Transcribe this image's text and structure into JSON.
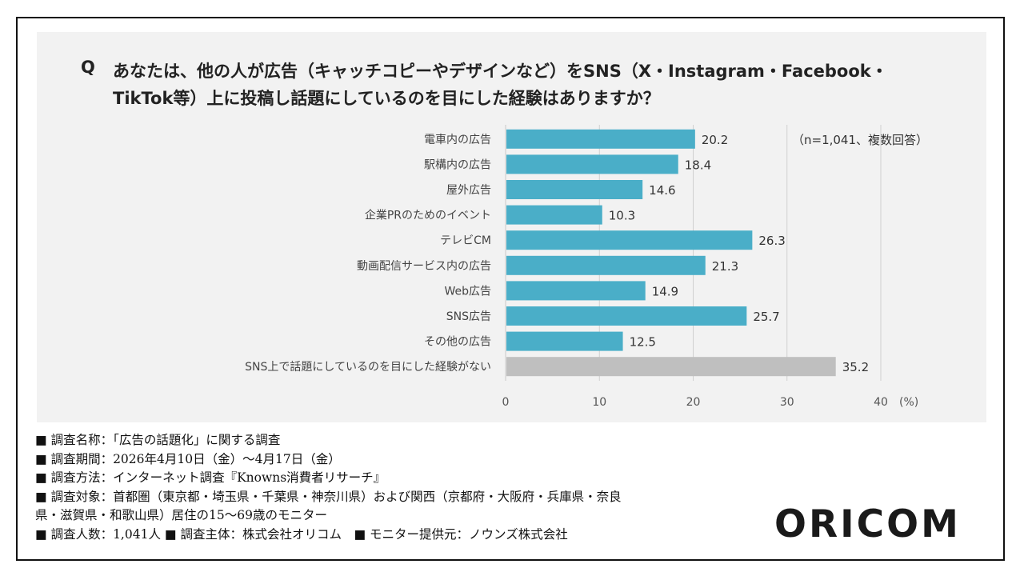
{
  "question": {
    "mark": "Q",
    "line1": "あなたは、他の人が広告（キャッチコピーやデザインなど）をSNS（X・Instagram・Facebook・",
    "line2": "TikTok等）上に投稿し話題にしているのを目にした経験はありますか？"
  },
  "note": "（n=1,041、複数回答）",
  "chart_data": {
    "type": "bar",
    "orientation": "horizontal",
    "categories": [
      "電車内の広告",
      "駅構内の広告",
      "屋外広告",
      "企業PRのためのイベント",
      "テレビCM",
      "動画配信サービス内の広告",
      "Web広告",
      "SNS広告",
      "その他の広告",
      "SNS上で話題にしているのを目にした経験がない"
    ],
    "values": [
      20.2,
      18.4,
      14.6,
      10.3,
      26.3,
      21.3,
      14.9,
      25.7,
      12.5,
      35.2
    ],
    "value_labels": [
      "20.2",
      "18.4",
      "14.6",
      "10.3",
      "26.3",
      "21.3",
      "14.9",
      "25.7",
      "12.5",
      "35.2"
    ],
    "xlim": [
      0,
      40
    ],
    "xticks": [
      "0",
      "10",
      "20",
      "30",
      "40"
    ],
    "xunit": "(%)",
    "grid": true,
    "colors": {
      "bar": "#4aaec8",
      "bar_highlight": "#bfbfbf",
      "grid": "#d0d0d0"
    },
    "highlight_index": 9
  },
  "meta": [
    "■ 調査名称：「広告の話題化」に関する調査",
    "■ 調査期間：2026年4月10日（金）～4月17日（金）",
    "■ 調査方法：インターネット調査『Knowns消費者リサーチ』",
    "■ 調査対象：首都圏（東京都・埼玉県・千葉県・神奈川県）および関西（京都府・大阪府・兵庫県・奈良",
    "県・滋賀県・和歌山県）居住の15～69歳のモニター",
    "■ 調査人数：1,041人 ■ 調査主体：株式会社オリコム　■ モニター提供元：ノウンズ株式会社"
  ],
  "logo": "ORICOM"
}
